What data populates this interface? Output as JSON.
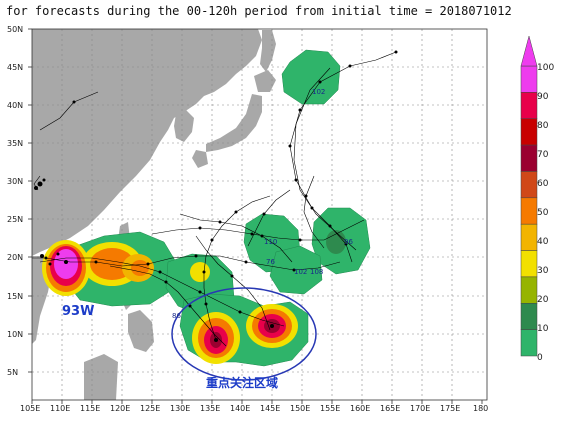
{
  "title": "for forecasts during the 00-120h period from initial time = 2018071012",
  "lat_labels": [
    "50N",
    "45N",
    "40N",
    "35N",
    "30N",
    "25N",
    "20N",
    "15N",
    "10N",
    "5N"
  ],
  "lon_labels": [
    "105E",
    "110E",
    "115E",
    "120E",
    "125E",
    "130E",
    "135E",
    "140E",
    "145E",
    "150E",
    "155E",
    "160E",
    "165E",
    "170E",
    "175E",
    "180"
  ],
  "colorbar": {
    "levels": [
      "100",
      "90",
      "80",
      "70",
      "60",
      "50",
      "40",
      "30",
      "20",
      "10",
      "0"
    ],
    "colors": [
      "#ee3cee",
      "#e8004a",
      "#c80000",
      "#9a0030",
      "#d04818",
      "#f57a00",
      "#f2b400",
      "#f2e000",
      "#96b400",
      "#2e8a4e",
      "#2fb46a"
    ]
  },
  "colors": {
    "ocean": "#ffffff",
    "land": "#a8a8a8",
    "ellipse": "#2838b4",
    "track": "#000000"
  },
  "storm_labels": [
    "93W",
    "102",
    "110",
    "108",
    "102",
    "76",
    "96",
    "86"
  ],
  "focus_label": "重点关注区域"
}
